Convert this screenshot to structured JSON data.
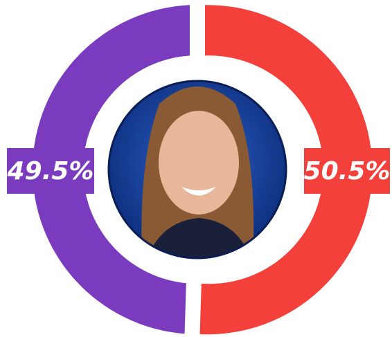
{
  "chart_data": {
    "type": "donut",
    "values": [
      49.5,
      50.5
    ],
    "value_labels": [
      "49.5%",
      "50.5%"
    ],
    "colors": [
      "#7a3bbf",
      "#f4403a"
    ]
  }
}
